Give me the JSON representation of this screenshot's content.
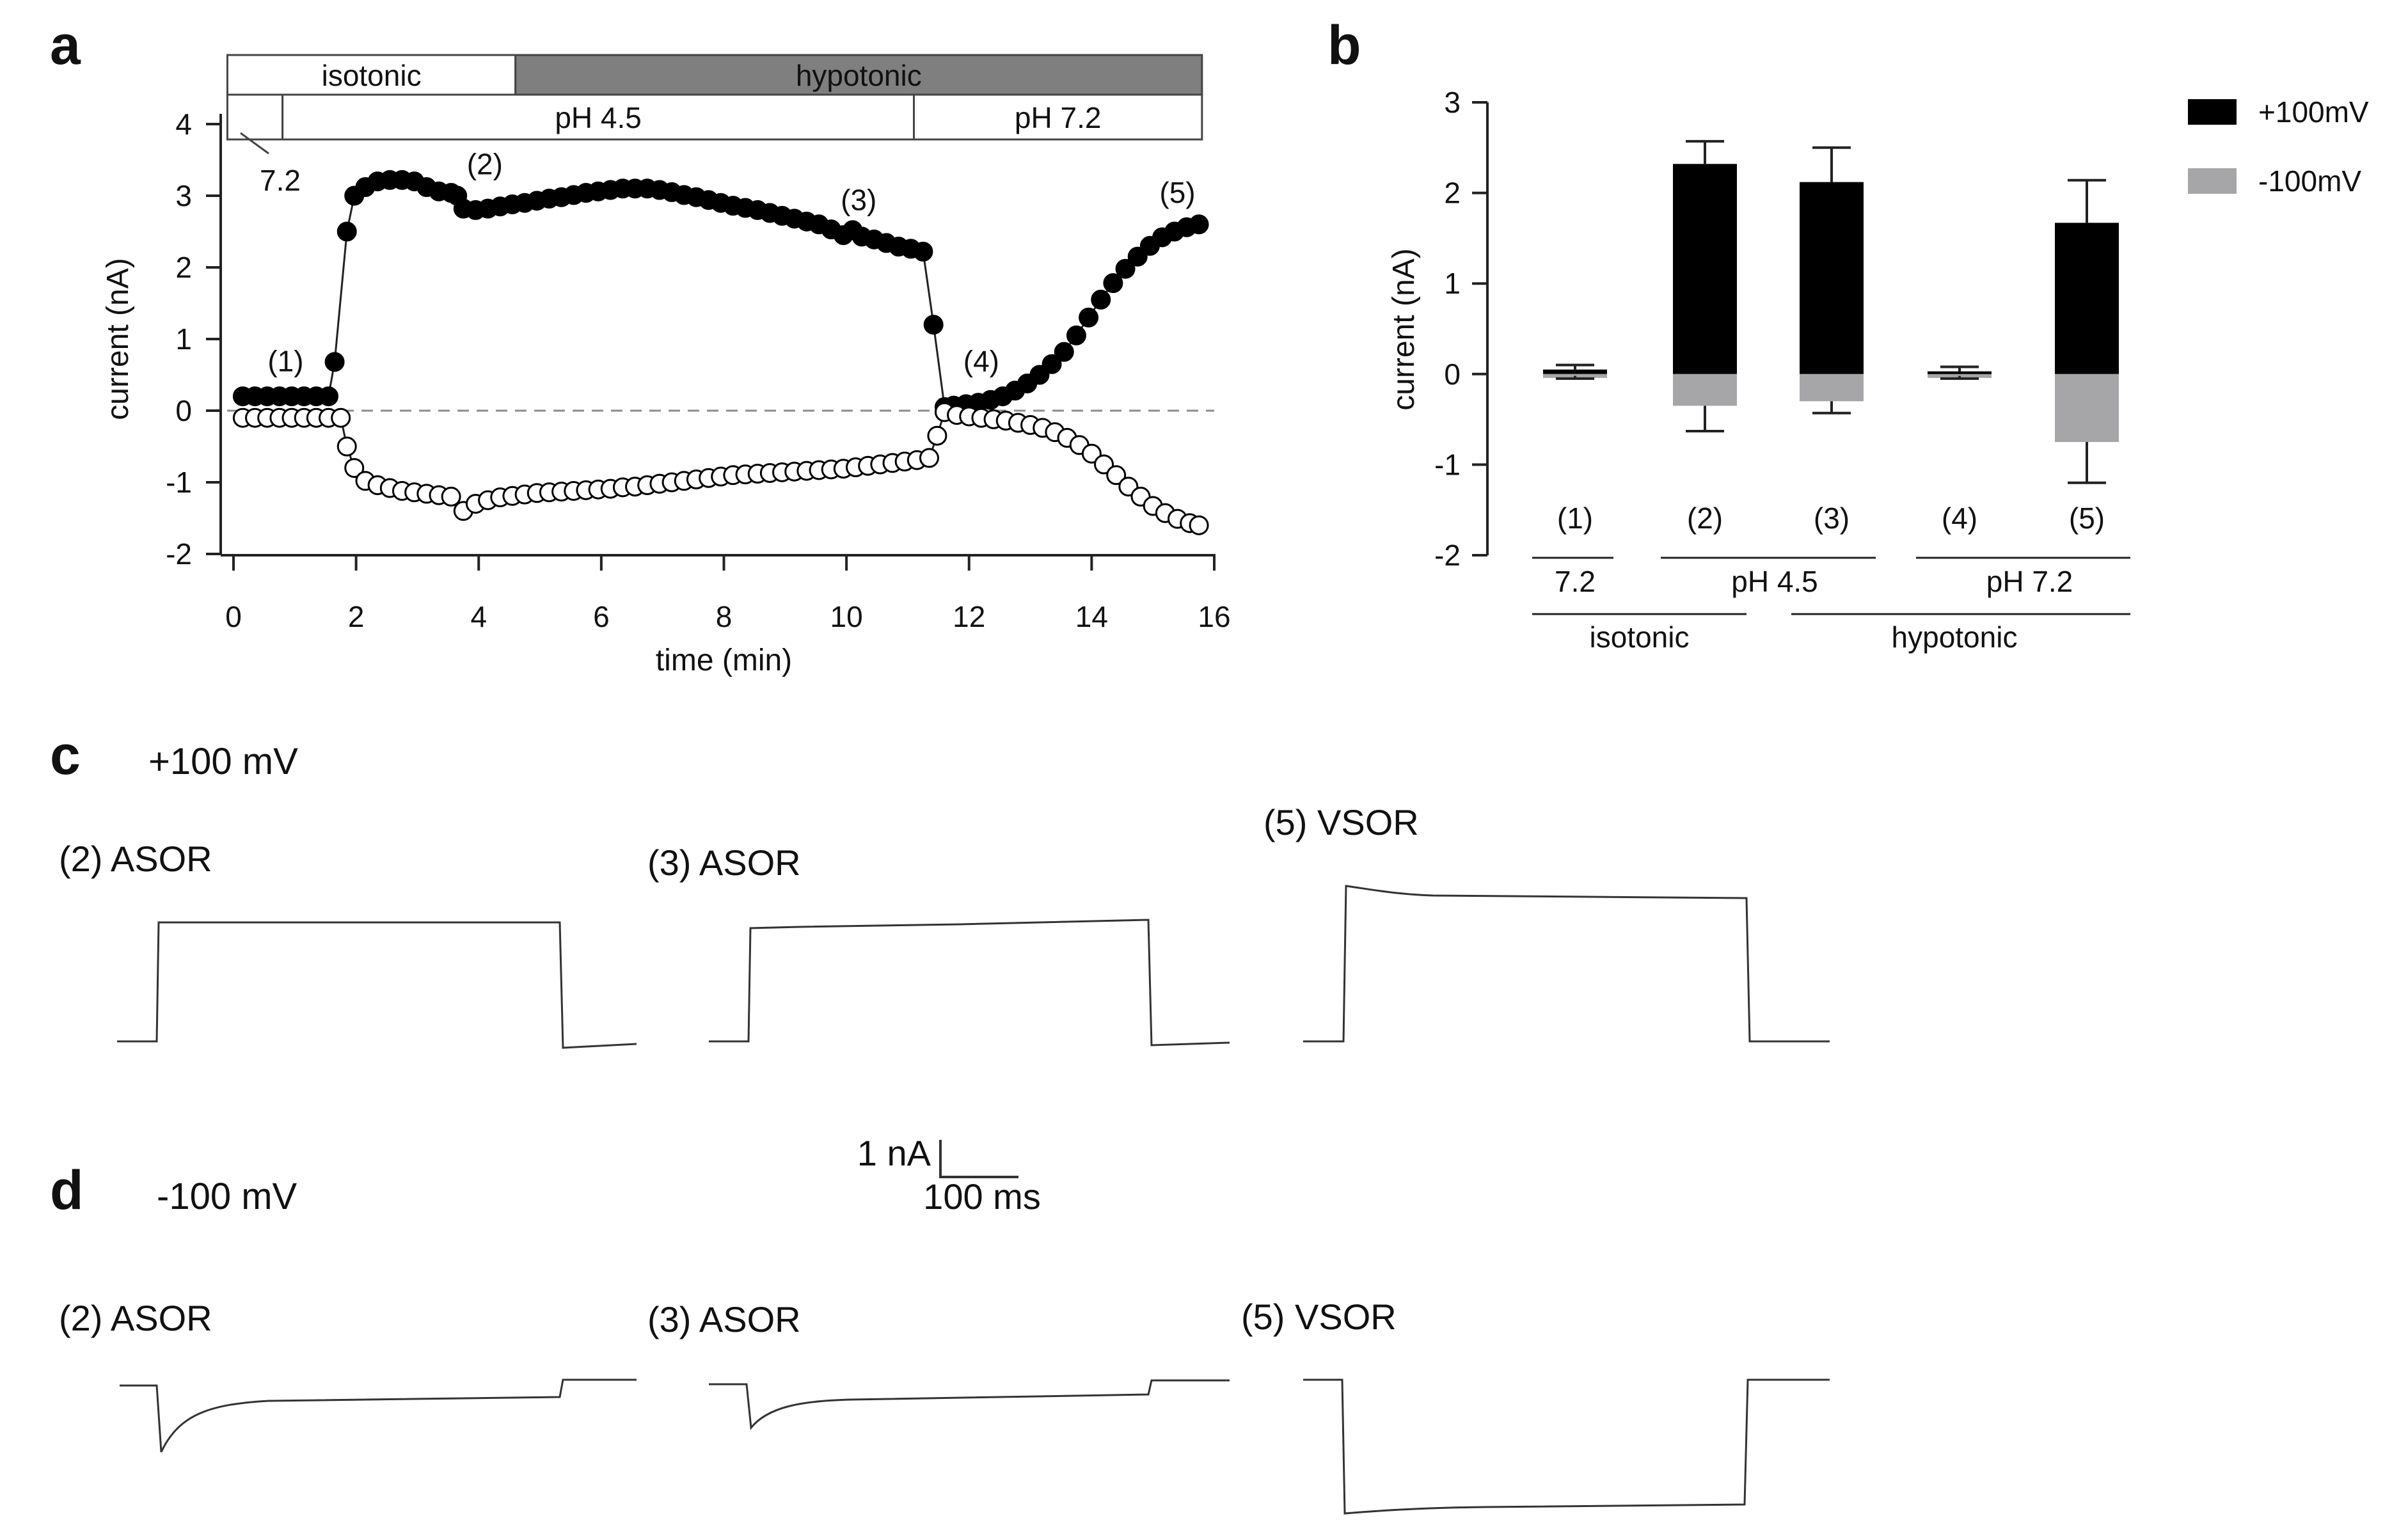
{
  "chart_data": [
    {
      "panel": "a",
      "type": "scatter",
      "xlabel": "time (min)",
      "ylabel": "current (nA)",
      "xlim": [
        0,
        16
      ],
      "ylim": [
        -2,
        4
      ],
      "xticks": [
        "0",
        "2",
        "4",
        "6",
        "8",
        "10",
        "12",
        "14",
        "16"
      ],
      "yticks": [
        "4",
        "3",
        "2",
        "1",
        "0",
        "-1",
        "-2"
      ],
      "condition_bar": {
        "tonicity": [
          {
            "label": "isotonic",
            "start": -0.1,
            "end": 4.6,
            "fill": "#ffffff"
          },
          {
            "label": "hypotonic",
            "start": 4.6,
            "end": 15.8,
            "fill": "#7f7f7f"
          }
        ],
        "ph": [
          {
            "label": "7.2",
            "start": -0.1,
            "end": 0.8
          },
          {
            "label": "pH 4.5",
            "start": 0.8,
            "end": 11.1
          },
          {
            "label": "pH 7.2",
            "start": 11.1,
            "end": 15.8
          }
        ]
      },
      "annotations": [
        {
          "label": "(1)",
          "x": 0.85,
          "y": 0.55
        },
        {
          "label": "(2)",
          "x": 4.1,
          "y": 3.3
        },
        {
          "label": "(3)",
          "x": 10.2,
          "y": 2.8
        },
        {
          "label": "(4)",
          "x": 12.2,
          "y": 0.55
        },
        {
          "label": "(5)",
          "x": 15.4,
          "y": 2.9
        }
      ],
      "series": [
        {
          "name": "+100mV",
          "marker": "filled",
          "points": [
            [
              0.15,
              0.2
            ],
            [
              0.35,
              0.2
            ],
            [
              0.55,
              0.2
            ],
            [
              0.75,
              0.2
            ],
            [
              0.95,
              0.2
            ],
            [
              1.15,
              0.2
            ],
            [
              1.35,
              0.2
            ],
            [
              1.55,
              0.2
            ],
            [
              1.65,
              0.68
            ],
            [
              1.85,
              2.5
            ],
            [
              1.97,
              3.0
            ],
            [
              2.15,
              3.12
            ],
            [
              2.35,
              3.2
            ],
            [
              2.55,
              3.22
            ],
            [
              2.75,
              3.22
            ],
            [
              2.95,
              3.2
            ],
            [
              3.15,
              3.12
            ],
            [
              3.35,
              3.06
            ],
            [
              3.55,
              3.04
            ],
            [
              3.65,
              3.0
            ],
            [
              3.75,
              2.82
            ],
            [
              3.95,
              2.8
            ],
            [
              4.15,
              2.82
            ],
            [
              4.35,
              2.85
            ],
            [
              4.55,
              2.88
            ],
            [
              4.75,
              2.9
            ],
            [
              4.95,
              2.93
            ],
            [
              5.15,
              2.96
            ],
            [
              5.35,
              2.98
            ],
            [
              5.55,
              3.01
            ],
            [
              5.75,
              3.04
            ],
            [
              5.95,
              3.06
            ],
            [
              6.15,
              3.08
            ],
            [
              6.35,
              3.1
            ],
            [
              6.55,
              3.1
            ],
            [
              6.75,
              3.1
            ],
            [
              6.95,
              3.08
            ],
            [
              7.15,
              3.05
            ],
            [
              7.35,
              3.01
            ],
            [
              7.55,
              2.98
            ],
            [
              7.75,
              2.94
            ],
            [
              7.95,
              2.9
            ],
            [
              8.15,
              2.86
            ],
            [
              8.35,
              2.83
            ],
            [
              8.55,
              2.8
            ],
            [
              8.75,
              2.76
            ],
            [
              8.95,
              2.72
            ],
            [
              9.15,
              2.68
            ],
            [
              9.35,
              2.64
            ],
            [
              9.55,
              2.6
            ],
            [
              9.75,
              2.53
            ],
            [
              9.95,
              2.45
            ],
            [
              10.1,
              2.52
            ],
            [
              10.25,
              2.43
            ],
            [
              10.45,
              2.39
            ],
            [
              10.65,
              2.34
            ],
            [
              10.85,
              2.29
            ],
            [
              11.05,
              2.26
            ],
            [
              11.25,
              2.22
            ],
            [
              11.42,
              1.2
            ],
            [
              11.6,
              0.05
            ],
            [
              11.75,
              0.07
            ],
            [
              11.95,
              0.09
            ],
            [
              12.15,
              0.11
            ],
            [
              12.35,
              0.15
            ],
            [
              12.55,
              0.2
            ],
            [
              12.75,
              0.28
            ],
            [
              12.95,
              0.38
            ],
            [
              13.15,
              0.5
            ],
            [
              13.35,
              0.65
            ],
            [
              13.55,
              0.82
            ],
            [
              13.75,
              1.05
            ],
            [
              13.95,
              1.3
            ],
            [
              14.15,
              1.55
            ],
            [
              14.35,
              1.78
            ],
            [
              14.55,
              1.98
            ],
            [
              14.75,
              2.15
            ],
            [
              14.95,
              2.3
            ],
            [
              15.15,
              2.42
            ],
            [
              15.35,
              2.5
            ],
            [
              15.55,
              2.56
            ],
            [
              15.75,
              2.6
            ]
          ]
        },
        {
          "name": "-100mV",
          "marker": "open",
          "points": [
            [
              0.15,
              -0.1
            ],
            [
              0.35,
              -0.1
            ],
            [
              0.55,
              -0.1
            ],
            [
              0.75,
              -0.1
            ],
            [
              0.95,
              -0.1
            ],
            [
              1.15,
              -0.1
            ],
            [
              1.35,
              -0.1
            ],
            [
              1.55,
              -0.1
            ],
            [
              1.75,
              -0.1
            ],
            [
              1.85,
              -0.5
            ],
            [
              1.97,
              -0.8
            ],
            [
              2.15,
              -0.98
            ],
            [
              2.35,
              -1.04
            ],
            [
              2.55,
              -1.08
            ],
            [
              2.75,
              -1.12
            ],
            [
              2.95,
              -1.14
            ],
            [
              3.15,
              -1.16
            ],
            [
              3.35,
              -1.18
            ],
            [
              3.55,
              -1.2
            ],
            [
              3.75,
              -1.4
            ],
            [
              3.95,
              -1.3
            ],
            [
              4.15,
              -1.25
            ],
            [
              4.35,
              -1.21
            ],
            [
              4.55,
              -1.19
            ],
            [
              4.75,
              -1.17
            ],
            [
              4.95,
              -1.15
            ],
            [
              5.15,
              -1.14
            ],
            [
              5.35,
              -1.13
            ],
            [
              5.55,
              -1.12
            ],
            [
              5.75,
              -1.11
            ],
            [
              5.95,
              -1.1
            ],
            [
              6.15,
              -1.09
            ],
            [
              6.35,
              -1.07
            ],
            [
              6.55,
              -1.06
            ],
            [
              6.75,
              -1.04
            ],
            [
              6.95,
              -1.02
            ],
            [
              7.15,
              -1.0
            ],
            [
              7.35,
              -0.98
            ],
            [
              7.55,
              -0.96
            ],
            [
              7.75,
              -0.94
            ],
            [
              7.95,
              -0.92
            ],
            [
              8.15,
              -0.9
            ],
            [
              8.35,
              -0.89
            ],
            [
              8.55,
              -0.88
            ],
            [
              8.75,
              -0.87
            ],
            [
              8.95,
              -0.86
            ],
            [
              9.15,
              -0.85
            ],
            [
              9.35,
              -0.84
            ],
            [
              9.55,
              -0.83
            ],
            [
              9.75,
              -0.82
            ],
            [
              9.95,
              -0.81
            ],
            [
              10.15,
              -0.79
            ],
            [
              10.35,
              -0.77
            ],
            [
              10.55,
              -0.75
            ],
            [
              10.75,
              -0.73
            ],
            [
              10.95,
              -0.71
            ],
            [
              11.15,
              -0.69
            ],
            [
              11.35,
              -0.66
            ],
            [
              11.48,
              -0.35
            ],
            [
              11.6,
              -0.02
            ],
            [
              11.8,
              -0.06
            ],
            [
              12.0,
              -0.08
            ],
            [
              12.2,
              -0.1
            ],
            [
              12.4,
              -0.12
            ],
            [
              12.6,
              -0.14
            ],
            [
              12.8,
              -0.17
            ],
            [
              13.0,
              -0.2
            ],
            [
              13.2,
              -0.24
            ],
            [
              13.4,
              -0.3
            ],
            [
              13.6,
              -0.38
            ],
            [
              13.8,
              -0.48
            ],
            [
              14.0,
              -0.6
            ],
            [
              14.2,
              -0.75
            ],
            [
              14.4,
              -0.9
            ],
            [
              14.6,
              -1.06
            ],
            [
              14.8,
              -1.2
            ],
            [
              15.0,
              -1.33
            ],
            [
              15.2,
              -1.43
            ],
            [
              15.4,
              -1.51
            ],
            [
              15.6,
              -1.57
            ],
            [
              15.75,
              -1.6
            ]
          ]
        }
      ]
    },
    {
      "panel": "b",
      "type": "bar",
      "ylabel": "current (nA)",
      "ylim": [
        -2,
        3
      ],
      "yticks": [
        "3",
        "2",
        "1",
        "0",
        "-1",
        "-2"
      ],
      "categories": [
        "(1)",
        "(2)",
        "(3)",
        "(4)",
        "(5)"
      ],
      "series": [
        {
          "name": "+100mV",
          "color": "#000000",
          "values": [
            0.05,
            2.32,
            2.12,
            0.03,
            1.67
          ],
          "err": [
            0.05,
            0.25,
            0.38,
            0.05,
            0.47
          ]
        },
        {
          "name": "-100mV",
          "color": "#a6a6a8",
          "values": [
            -0.02,
            -0.35,
            -0.3,
            -0.02,
            -0.75
          ],
          "err": [
            0.03,
            0.28,
            0.13,
            0.03,
            0.45
          ]
        }
      ],
      "groups_ph": [
        {
          "label": "7.2",
          "from": 0,
          "to": 0
        },
        {
          "label": "pH 4.5",
          "from": 1,
          "to": 2
        },
        {
          "label": "pH 7.2",
          "from": 3,
          "to": 4
        }
      ],
      "groups_tonicity": [
        {
          "label": "isotonic",
          "from": 0,
          "to": 1
        },
        {
          "label": "hypotonic",
          "from": 2,
          "to": 4
        }
      ]
    }
  ],
  "panels": {
    "a": "a",
    "b": "b",
    "c": "c",
    "d": "d"
  },
  "traces": {
    "c_title": "+100 mV",
    "d_title": "-100 mV",
    "c_labels": [
      "(2) ASOR",
      "(3) ASOR",
      "(5) VSOR"
    ],
    "d_labels": [
      "(2) ASOR",
      "(3) ASOR",
      "(5) VSOR"
    ],
    "scale_current": "1 nA",
    "scale_time": "100 ms"
  }
}
